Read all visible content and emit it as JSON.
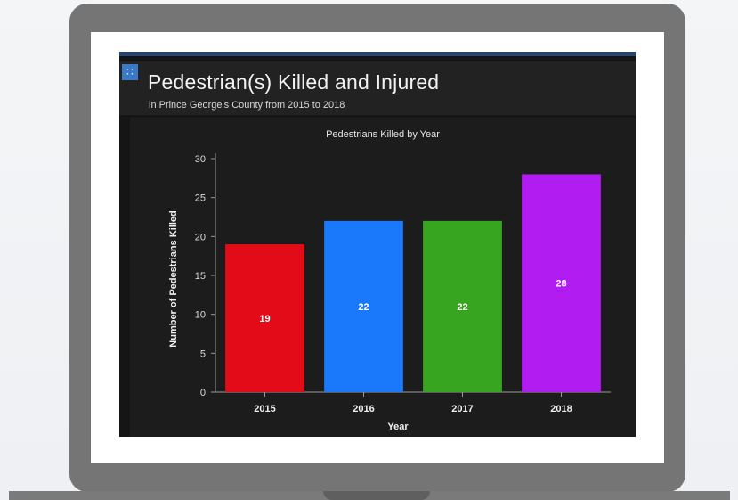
{
  "header": {
    "title": "Pedestrian(s) Killed and Injured",
    "subtitle": "in Prince George's County from 2015 to 2018",
    "icon": "grid-icon"
  },
  "colors": {
    "panel_background": "#151515",
    "header_background": "#222222",
    "accent": "#27456e"
  },
  "chart_data": {
    "type": "bar",
    "title": "Pedestrians Killed by Year",
    "xlabel": "Year",
    "ylabel": "Number of Pedestrians Killed",
    "categories": [
      "2015",
      "2016",
      "2017",
      "2018"
    ],
    "values": [
      19,
      22,
      22,
      28
    ],
    "data_labels": [
      "19",
      "22",
      "22",
      "28"
    ],
    "bar_colors": [
      "#e30b17",
      "#1a78fb",
      "#37a51f",
      "#b11df0"
    ],
    "ylim": [
      0,
      30
    ],
    "yticks": [
      0,
      5,
      10,
      15,
      20,
      25,
      30
    ],
    "grid": false,
    "legend": "none"
  }
}
